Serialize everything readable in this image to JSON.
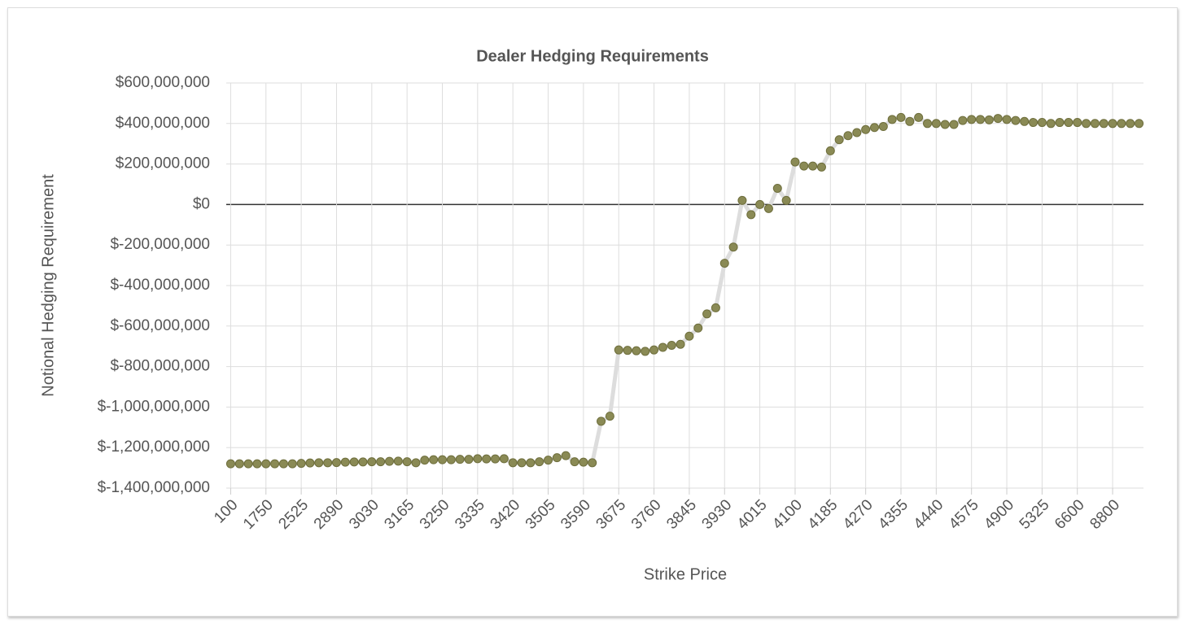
{
  "chart_data": {
    "type": "line",
    "title": "Dealer Hedging Requirements",
    "x_label": "Strike Price",
    "y_label": "Notional Hedging Requirement",
    "categories": [
      100,
      null,
      null,
      null,
      1750,
      null,
      null,
      null,
      2525,
      null,
      null,
      null,
      2890,
      null,
      null,
      null,
      3030,
      null,
      null,
      null,
      3165,
      null,
      null,
      null,
      3250,
      null,
      null,
      null,
      3335,
      null,
      null,
      null,
      3420,
      null,
      null,
      null,
      3505,
      null,
      null,
      null,
      3590,
      null,
      null,
      null,
      3675,
      null,
      null,
      null,
      3760,
      null,
      null,
      null,
      3845,
      null,
      null,
      null,
      3930,
      null,
      null,
      null,
      4015,
      null,
      null,
      null,
      4100,
      null,
      null,
      null,
      4185,
      null,
      null,
      null,
      4270,
      null,
      null,
      null,
      4355,
      null,
      null,
      null,
      4440,
      null,
      null,
      null,
      4575,
      null,
      null,
      null,
      4900,
      null,
      null,
      null,
      5325,
      null,
      null,
      null,
      6600,
      null,
      null,
      null,
      8800,
      null,
      null,
      null
    ],
    "series": [
      {
        "name": "Notional Hedging Requirement",
        "color": "#8a8a55",
        "values": [
          -1280000000,
          -1280000000,
          -1280000000,
          -1280000000,
          -1280000000,
          -1280000000,
          -1280000000,
          -1280000000,
          -1278000000,
          -1276000000,
          -1275000000,
          -1275000000,
          -1274000000,
          -1272000000,
          -1271000000,
          -1271000000,
          -1270000000,
          -1270000000,
          -1268000000,
          -1267000000,
          -1270000000,
          -1275000000,
          -1262000000,
          -1260000000,
          -1260000000,
          -1260000000,
          -1258000000,
          -1258000000,
          -1255000000,
          -1256000000,
          -1256000000,
          -1255000000,
          -1275000000,
          -1275000000,
          -1275000000,
          -1270000000,
          -1262000000,
          -1250000000,
          -1240000000,
          -1270000000,
          -1272000000,
          -1275000000,
          -1070000000,
          -1045000000,
          -718000000,
          -720000000,
          -722000000,
          -725000000,
          -718000000,
          -705000000,
          -695000000,
          -690000000,
          -650000000,
          -610000000,
          -540000000,
          -510000000,
          -290000000,
          -210000000,
          20000000,
          -50000000,
          0,
          -20000000,
          80000000,
          20000000,
          210000000,
          190000000,
          190000000,
          185000000,
          265000000,
          320000000,
          340000000,
          355000000,
          370000000,
          380000000,
          385000000,
          420000000,
          430000000,
          410000000,
          430000000,
          400000000,
          400000000,
          395000000,
          395000000,
          415000000,
          420000000,
          420000000,
          418000000,
          425000000,
          420000000,
          415000000,
          410000000,
          405000000,
          405000000,
          400000000,
          405000000,
          405000000,
          405000000,
          400000000,
          400000000,
          400000000,
          400000000,
          400000000,
          400000000,
          400000000
        ]
      }
    ],
    "ylim": [
      -1400000000,
      600000000
    ],
    "yticks": [
      {
        "value": -1400000000,
        "label": "$-1,400,000,000"
      },
      {
        "value": -1200000000,
        "label": "$-1,200,000,000"
      },
      {
        "value": -1000000000,
        "label": "$-1,000,000,000"
      },
      {
        "value": -800000000,
        "label": "$-800,000,000"
      },
      {
        "value": -600000000,
        "label": "$-600,000,000"
      },
      {
        "value": -400000000,
        "label": "$-400,000,000"
      },
      {
        "value": -200000000,
        "label": "$-200,000,000"
      },
      {
        "value": 0,
        "label": "$0"
      },
      {
        "value": 200000000,
        "label": "$200,000,000"
      },
      {
        "value": 400000000,
        "label": "$400,000,000"
      },
      {
        "value": 600000000,
        "label": "$600,000,000"
      }
    ],
    "grid": true,
    "line_color": "#dddddd"
  }
}
